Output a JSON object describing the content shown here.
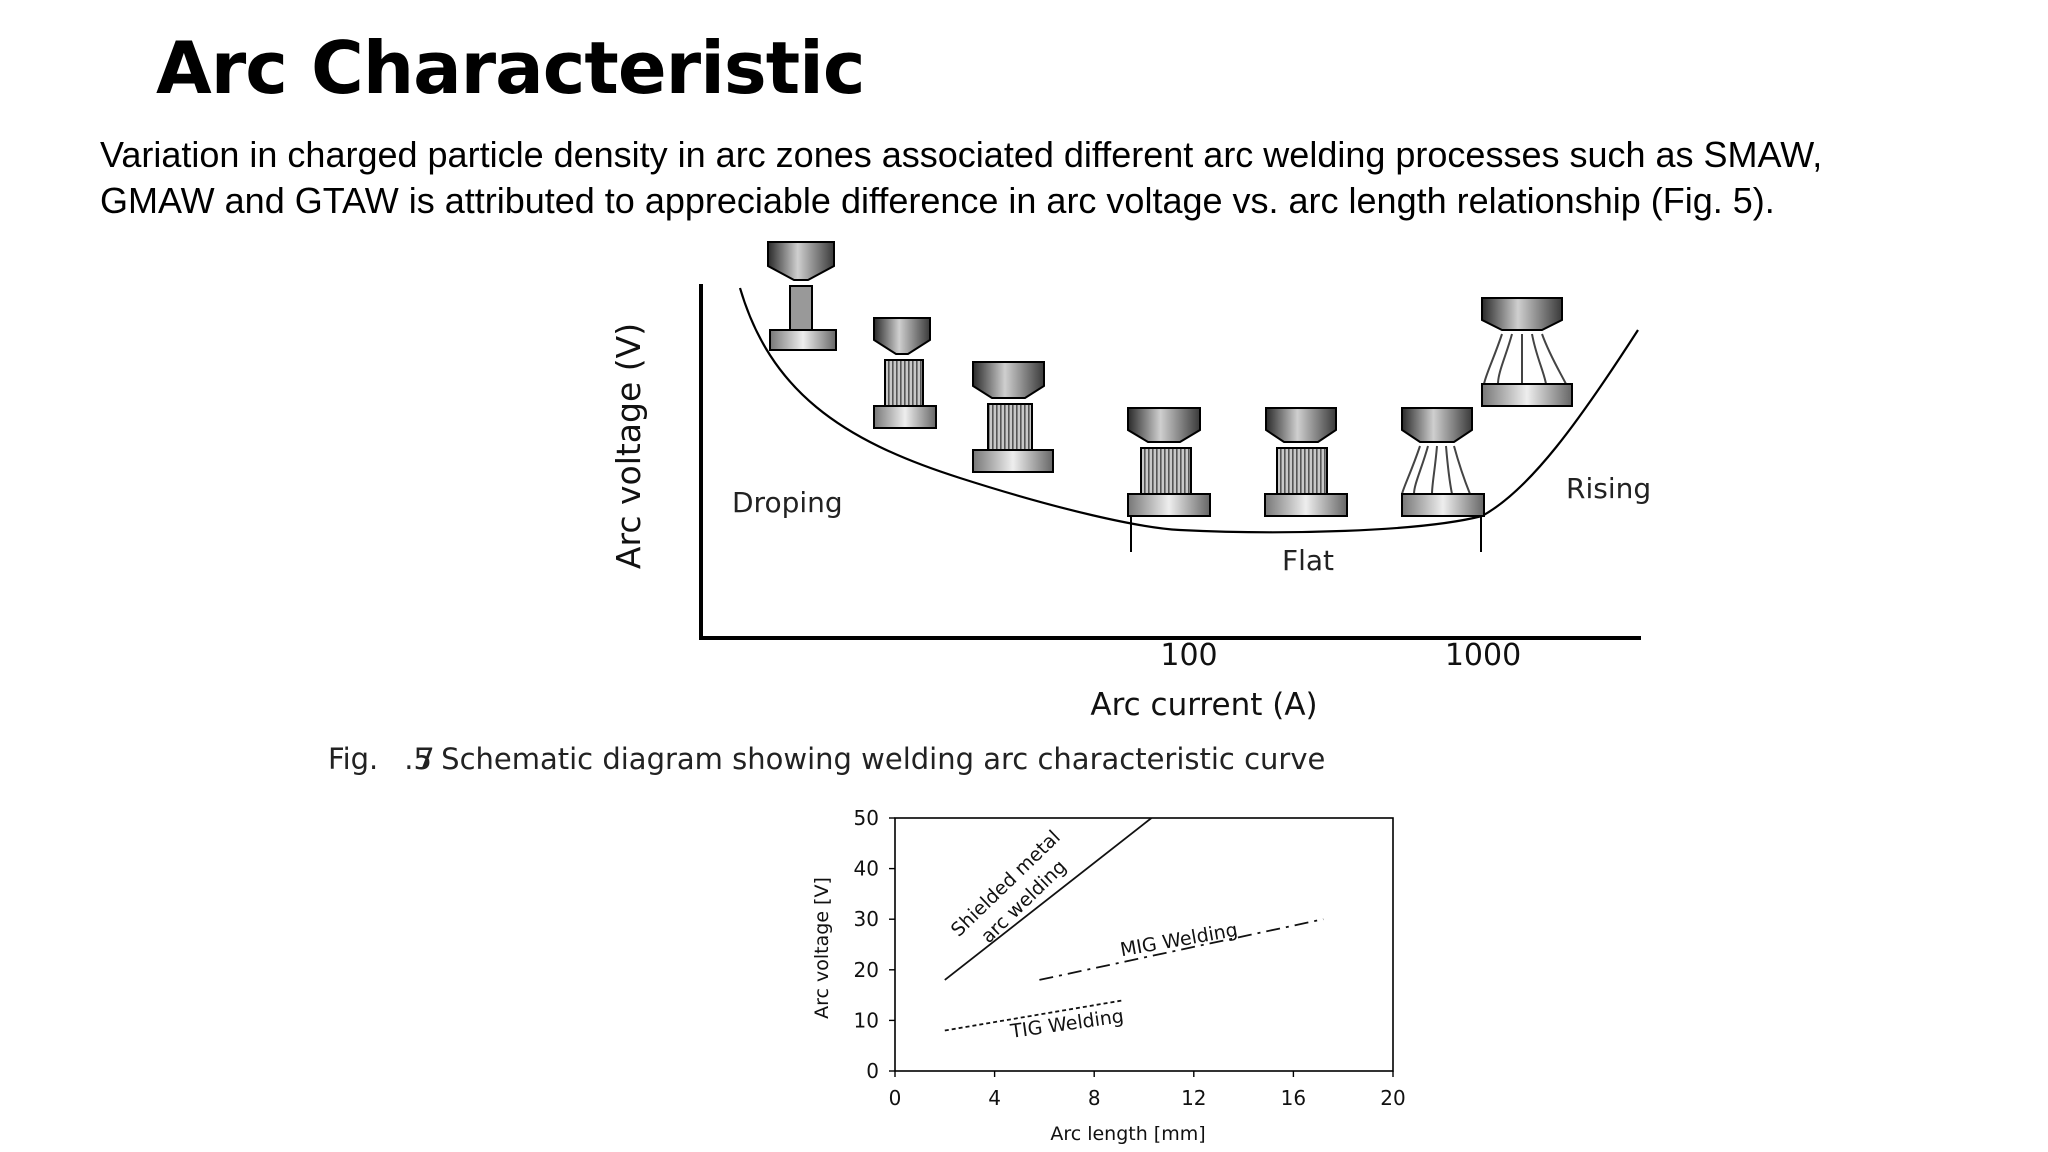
{
  "slide": {
    "title": "Arc Characteristic",
    "paragraph_lines": [
      "Variation in charged particle density in arc zones associated different arc welding processes such as SMAW,",
      "GMAW and GTAW is attributed to appreciable difference in arc voltage vs. arc length relationship (Fig. 5)."
    ]
  },
  "figure_top": {
    "y_axis_label": "Arc voltage (V)",
    "x_axis_label": "Arc current (A)",
    "tick_labels": [
      "100",
      "1000"
    ],
    "region_labels": {
      "dropping": "Droping",
      "flat": "Flat",
      "rising": "Rising"
    },
    "caption_prefix": "Fig.",
    "caption_number": ".5",
    "caption_overlay": "7",
    "caption_text": "Schematic diagram showing welding arc characteristic curve"
  },
  "chart_data": {
    "type": "line",
    "title": "",
    "xlabel": "Arc length [mm]",
    "ylabel": "Arc voltage [V]",
    "xlim": [
      0,
      20
    ],
    "ylim": [
      0,
      50
    ],
    "x_ticks": [
      0,
      4,
      8,
      12,
      16,
      20
    ],
    "y_ticks": [
      0,
      10,
      20,
      30,
      40,
      50
    ],
    "grid": false,
    "series": [
      {
        "name": "Shielded metal arc welding",
        "label_lines": [
          "Shielded metal",
          "arc welding"
        ],
        "style": "solid",
        "x": [
          2,
          10.3
        ],
        "y": [
          18,
          50
        ]
      },
      {
        "name": "MIG Welding",
        "style": "dashdot",
        "x": [
          5.8,
          17.2
        ],
        "y": [
          18,
          30
        ]
      },
      {
        "name": "TIG Welding",
        "style": "dotted",
        "x": [
          2,
          9.2
        ],
        "y": [
          8,
          14
        ]
      }
    ]
  }
}
